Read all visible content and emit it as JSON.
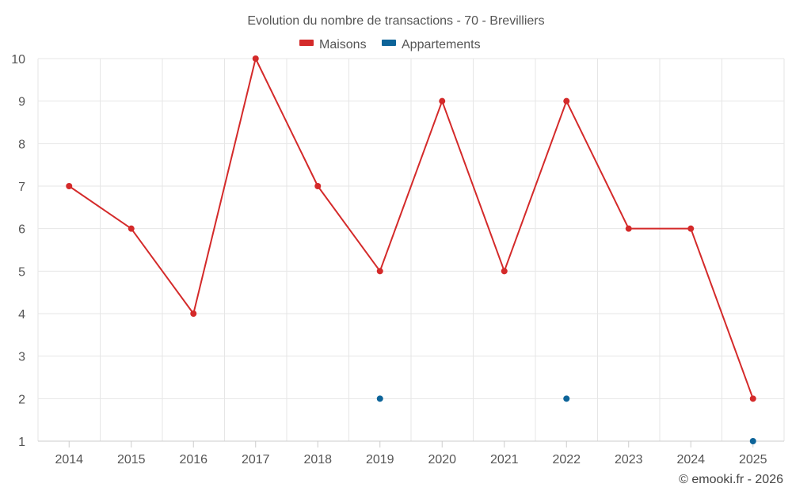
{
  "chart_data": {
    "type": "line",
    "title": "Evolution du nombre de transactions - 70 - Brevilliers",
    "categories": [
      "2014",
      "2015",
      "2016",
      "2017",
      "2018",
      "2019",
      "2020",
      "2021",
      "2022",
      "2023",
      "2024",
      "2025"
    ],
    "ylim": [
      1,
      10
    ],
    "yticks": [
      1,
      2,
      3,
      4,
      5,
      6,
      7,
      8,
      9,
      10
    ],
    "grid": true,
    "legend_position": "top-center",
    "series": [
      {
        "name": "Maisons",
        "color": "#d42a2a",
        "draw_line": true,
        "values": [
          7,
          6,
          4,
          10,
          7,
          5,
          9,
          5,
          9,
          6,
          6,
          2
        ]
      },
      {
        "name": "Appartements",
        "color": "#0d6499",
        "draw_line": false,
        "values": [
          null,
          null,
          null,
          null,
          null,
          2,
          null,
          null,
          2,
          null,
          null,
          1
        ]
      }
    ]
  },
  "credit": "© emooki.fr - 2026"
}
